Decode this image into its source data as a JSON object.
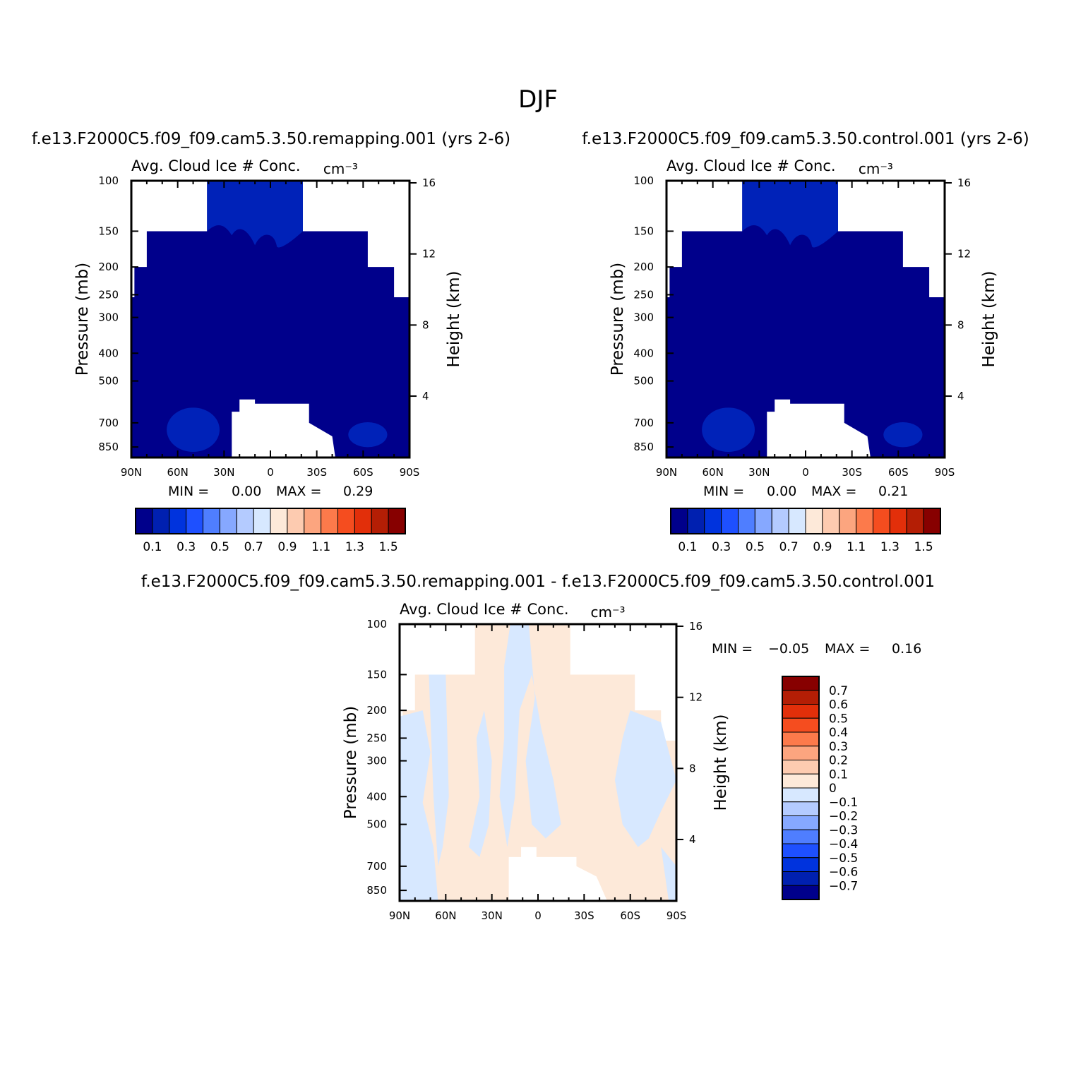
{
  "title": "DJF",
  "panel_titles": {
    "left": "f.e13.F2000C5.f09_f09.cam5.3.50.remapping.001 (yrs 2-6)",
    "right": "f.e13.F2000C5.f09_f09.cam5.3.50.control.001 (yrs 2-6)",
    "diff": "f.e13.F2000C5.f09_f09.cam5.3.50.remapping.001 - f.e13.F2000C5.f09_f09.cam5.3.50.control.001"
  },
  "colors": {
    "seq": [
      "#00008b",
      "#0020b0",
      "#0033dd",
      "#1e50ff",
      "#4f7eff",
      "#86a8ff",
      "#b4cbff",
      "#d7e8ff",
      "#fde9d9",
      "#fdcbb0",
      "#fca57f",
      "#fc7a4b",
      "#f54d1f",
      "#e22f0a",
      "#b41e05",
      "#870000"
    ],
    "field_dark": "#00008b",
    "field_mid": "#0022b8",
    "diff_pos": "#fde9d9",
    "diff_neg": "#d7e8ff"
  },
  "chart_data": [
    {
      "type": "heatmap",
      "id": "remapping",
      "subtitle": "Avg. Cloud Ice # Conc.",
      "units": "cm:S:-3:N:",
      "xlabel": "",
      "ylabel": "Pressure (mb)",
      "y2label": "Height (km)",
      "x_ticks": [
        "90N",
        "60N",
        "30N",
        "0",
        "30S",
        "60S",
        "90S"
      ],
      "x_range": [
        90,
        -90
      ],
      "y_ticks": [
        100,
        150,
        200,
        250,
        300,
        400,
        500,
        700,
        850
      ],
      "y2_ticks": [
        16,
        12,
        8,
        4
      ],
      "y_range": [
        100,
        925
      ],
      "min_label": "MIN =",
      "min": "0.00",
      "max_label": "MAX =",
      "max": "0.29",
      "colorbar_labels": [
        "0.1",
        "0.3",
        "0.5",
        "0.7",
        "0.9",
        "1.1",
        "1.3",
        "1.5"
      ]
    },
    {
      "type": "heatmap",
      "id": "control",
      "subtitle": "Avg. Cloud Ice # Conc.",
      "units": "cm:S:-3:N:",
      "xlabel": "",
      "ylabel": "Pressure (mb)",
      "y2label": "Height (km)",
      "x_ticks": [
        "90N",
        "60N",
        "30N",
        "0",
        "30S",
        "60S",
        "90S"
      ],
      "x_range": [
        90,
        -90
      ],
      "y_ticks": [
        100,
        150,
        200,
        250,
        300,
        400,
        500,
        700,
        850
      ],
      "y2_ticks": [
        16,
        12,
        8,
        4
      ],
      "y_range": [
        100,
        925
      ],
      "min_label": "MIN =",
      "min": "0.00",
      "max_label": "MAX =",
      "max": "0.21",
      "colorbar_labels": [
        "0.1",
        "0.3",
        "0.5",
        "0.7",
        "0.9",
        "1.1",
        "1.3",
        "1.5"
      ]
    },
    {
      "type": "heatmap",
      "id": "difference",
      "subtitle": "Avg. Cloud Ice # Conc.",
      "units": "cm:S:-3:N:",
      "xlabel": "",
      "ylabel": "Pressure (mb)",
      "y2label": "Height (km)",
      "x_ticks": [
        "90N",
        "60N",
        "30N",
        "0",
        "30S",
        "60S",
        "90S"
      ],
      "x_range": [
        90,
        -90
      ],
      "y_ticks": [
        100,
        150,
        200,
        250,
        300,
        400,
        500,
        700,
        850
      ],
      "y2_ticks": [
        16,
        12,
        8,
        4
      ],
      "y_range": [
        100,
        925
      ],
      "min_label": "MIN =",
      "min": "-0.05",
      "max_label": "MAX =",
      "max": "0.16",
      "colorbar_labels": [
        "0.7",
        "0.6",
        "0.5",
        "0.4",
        "0.3",
        "0.2",
        "0.1",
        "0",
        "-0.1",
        "-0.2",
        "-0.3",
        "-0.4",
        "-0.5",
        "-0.6",
        "-0.7"
      ]
    }
  ]
}
